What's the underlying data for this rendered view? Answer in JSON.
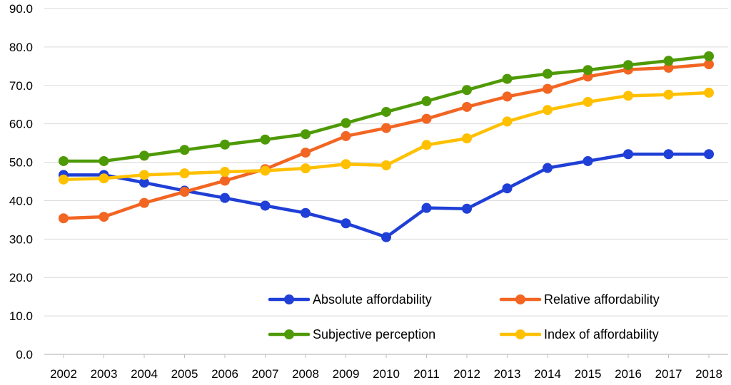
{
  "chart_data": {
    "type": "line",
    "title": "",
    "xlabel": "",
    "ylabel": "",
    "ylim": [
      0,
      90
    ],
    "y_ticks": [
      "0.0",
      "10.0",
      "20.0",
      "30.0",
      "40.0",
      "50.0",
      "60.0",
      "70.0",
      "80.0",
      "90.0"
    ],
    "grid": true,
    "legend_position": "bottom-right",
    "x": [
      "2002",
      "2003",
      "2004",
      "2005",
      "2006",
      "2007",
      "2008",
      "2009",
      "2010",
      "2011",
      "2012",
      "2013",
      "2014",
      "2015",
      "2016",
      "2017",
      "2018"
    ],
    "series": [
      {
        "name": "Absolute affordability",
        "color": "#1f3fd6",
        "values": [
          46.7,
          46.7,
          44.7,
          42.6,
          40.7,
          38.7,
          36.8,
          34.1,
          30.5,
          38.1,
          37.9,
          43.2,
          48.5,
          50.3,
          52.1,
          52.1,
          52.1
        ]
      },
      {
        "name": "Relative affordability",
        "color": "#f26522",
        "values": [
          35.4,
          35.8,
          39.4,
          42.3,
          45.2,
          48.2,
          52.5,
          56.8,
          58.9,
          61.3,
          64.4,
          67.1,
          69.1,
          72.3,
          74.1,
          74.6,
          75.5
        ]
      },
      {
        "name": "Subjective perception",
        "color": "#4e9a06",
        "values": [
          50.3,
          50.3,
          51.7,
          53.2,
          54.6,
          55.9,
          57.3,
          60.2,
          63.1,
          65.9,
          68.8,
          71.7,
          73.0,
          74.0,
          75.3,
          76.4,
          77.6
        ]
      },
      {
        "name": "Index of affordability",
        "color": "#ffc000",
        "values": [
          45.5,
          45.8,
          46.7,
          47.1,
          47.5,
          47.8,
          48.4,
          49.5,
          49.2,
          54.5,
          56.2,
          60.6,
          63.6,
          65.7,
          67.3,
          67.6,
          68.1
        ]
      }
    ]
  }
}
